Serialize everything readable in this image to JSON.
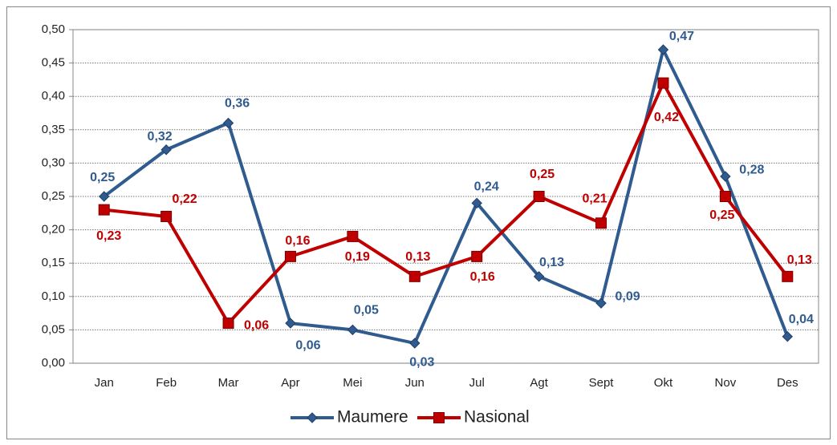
{
  "chart_data": {
    "type": "line",
    "categories": [
      "Jan",
      "Feb",
      "Mar",
      "Apr",
      "Mei",
      "Jun",
      "Jul",
      "Agt",
      "Sept",
      "Okt",
      "Nov",
      "Des"
    ],
    "series": [
      {
        "name": "Maumere",
        "color": "#2f5b8f",
        "values": [
          0.25,
          0.32,
          0.36,
          0.06,
          0.05,
          0.03,
          0.24,
          0.13,
          0.09,
          0.47,
          0.28,
          0.04
        ],
        "value_labels": [
          "0,25",
          "0,32",
          "0,36",
          "0,06",
          "0,05",
          "0,03",
          "0,24",
          "0,13",
          "0,09",
          "0,47",
          "0,28",
          "0,04"
        ]
      },
      {
        "name": "Nasional",
        "color": "#c00000",
        "values": [
          0.23,
          0.22,
          0.06,
          0.16,
          0.19,
          0.13,
          0.16,
          0.25,
          0.21,
          0.42,
          0.25,
          0.13
        ],
        "value_labels": [
          "0,23",
          "0,22",
          "0,06",
          "0,16",
          "0,19",
          "0,13",
          "0,16",
          "0,25",
          "0,21",
          "0,42",
          "0,25",
          "0,13"
        ]
      }
    ],
    "ylim": [
      0,
      0.5
    ],
    "yticks": [
      {
        "value": 0,
        "label": "0,00"
      },
      {
        "value": 0.05,
        "label": "0,05"
      },
      {
        "value": 0.1,
        "label": "0,10"
      },
      {
        "value": 0.15,
        "label": "0,15"
      },
      {
        "value": 0.2,
        "label": "0,20"
      },
      {
        "value": 0.25,
        "label": "0,25"
      },
      {
        "value": 0.3,
        "label": "0,30"
      },
      {
        "value": 0.35,
        "label": "0,35"
      },
      {
        "value": 0.4,
        "label": "0,40"
      },
      {
        "value": 0.45,
        "label": "0,45"
      },
      {
        "value": 0.5,
        "label": "0,50"
      }
    ],
    "grid": true,
    "legend": "bottom"
  }
}
